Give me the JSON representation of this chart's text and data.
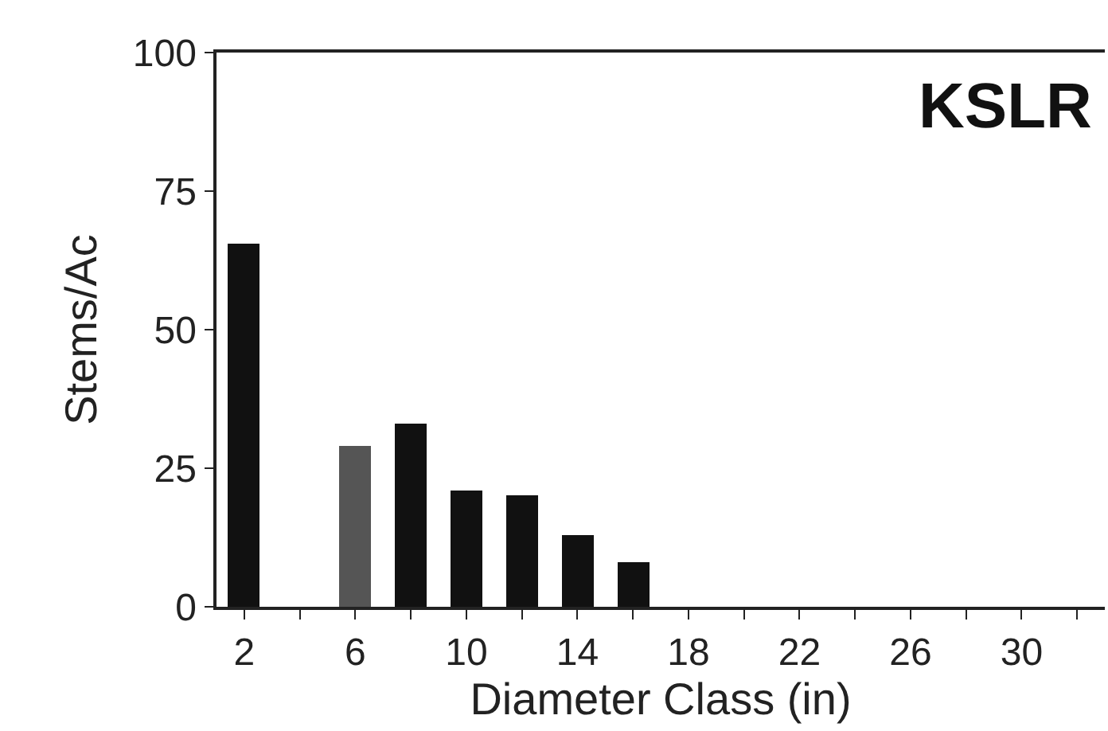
{
  "chart_data": {
    "type": "bar",
    "xlabel": "Diameter Class (in)",
    "ylabel": "Stems/Ac",
    "annotations": [
      "KSLR"
    ],
    "x": [
      2,
      6,
      8,
      10,
      12,
      14,
      16
    ],
    "values": [
      65.5,
      29,
      33,
      21,
      20,
      13,
      8
    ],
    "colors": [
      "#111111",
      "#555555",
      "#111111",
      "#111111",
      "#111111",
      "#111111",
      "#111111"
    ],
    "xlim": [
      1,
      33
    ],
    "xticks": [
      2,
      {
        "value": 4,
        "label": null
      },
      6,
      {
        "value": 8,
        "label": null
      },
      10,
      {
        "value": 12,
        "label": null
      },
      14,
      {
        "value": 16,
        "label": null
      },
      18,
      {
        "value": 20,
        "label": null
      },
      22,
      {
        "value": 24,
        "label": null
      },
      26,
      {
        "value": 28,
        "label": null
      },
      30,
      {
        "value": 32,
        "label": null
      }
    ],
    "ylim": [
      0,
      100
    ],
    "yticks": [
      0,
      25,
      50,
      75,
      100
    ]
  }
}
